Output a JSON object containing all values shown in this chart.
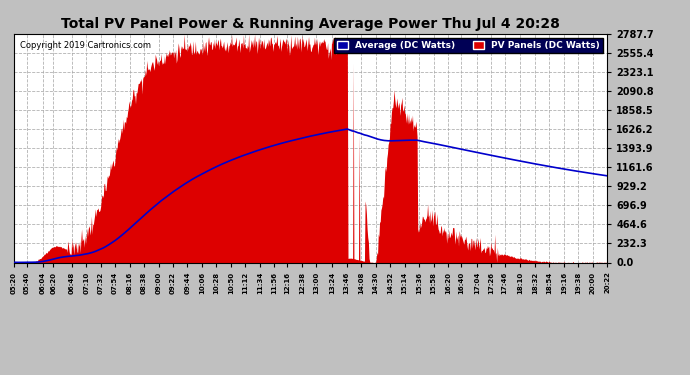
{
  "title": "Total PV Panel Power & Running Average Power Thu Jul 4 20:28",
  "copyright": "Copyright 2019 Cartronics.com",
  "legend_avg": "Average (DC Watts)",
  "legend_pv": "PV Panels (DC Watts)",
  "ymax": 2787.7,
  "yticks": [
    0.0,
    232.3,
    464.6,
    696.9,
    929.2,
    1161.6,
    1393.9,
    1626.2,
    1858.5,
    2090.8,
    2323.1,
    2555.4,
    2787.7
  ],
  "pv_color": "#dd0000",
  "avg_color": "#0000cc",
  "outer_bg": "#c0c0c0",
  "plot_bg": "#ffffff",
  "grid_color": "#aaaaaa",
  "title_color": "#000000",
  "label_times": [
    "05:20",
    "05:40",
    "06:04",
    "06:20",
    "06:48",
    "07:10",
    "07:32",
    "07:54",
    "08:16",
    "08:38",
    "09:00",
    "09:22",
    "09:44",
    "10:06",
    "10:28",
    "10:50",
    "11:12",
    "11:34",
    "11:56",
    "12:16",
    "12:38",
    "13:00",
    "13:24",
    "13:46",
    "14:08",
    "14:30",
    "14:52",
    "15:14",
    "15:36",
    "15:58",
    "16:20",
    "16:40",
    "17:04",
    "17:26",
    "17:46",
    "18:10",
    "18:32",
    "18:54",
    "19:16",
    "19:38",
    "20:00",
    "20:22"
  ],
  "start_hhmm": "05:20",
  "end_hhmm": "20:22"
}
